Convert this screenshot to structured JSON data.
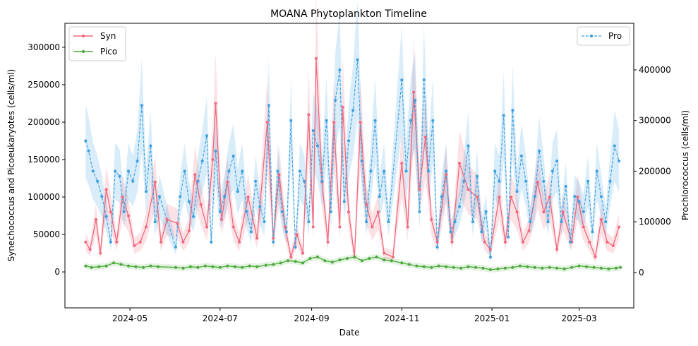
{
  "chart_data": {
    "type": "line",
    "title": "MOANA Phytoplankton Timeline",
    "xlabel": "Date",
    "ylabel_left": "Synechococcus and Picoeukaryotes (cells/ml)",
    "ylabel_right": "Prochlorococcus (cells/ml)",
    "xlim": [
      "2024-03-18",
      "2025-04-07"
    ],
    "ylim_left": [
      -48000,
      332000
    ],
    "ylim_right": [
      -70000,
      492000
    ],
    "x_ticks": [
      "2024-05",
      "2024-07",
      "2024-09",
      "2024-11",
      "2025-01",
      "2025-03"
    ],
    "y_ticks_left": [
      "0",
      "50000",
      "100000",
      "150000",
      "200000",
      "250000",
      "300000"
    ],
    "y_ticks_right": [
      "0",
      "100000",
      "200000",
      "300000",
      "400000"
    ],
    "legend_left": [
      "Syn",
      "Pico"
    ],
    "legend_right": [
      "Pro"
    ],
    "legend_left_loc": "upper left",
    "legend_right_loc": "upper right",
    "colors": {
      "Syn": "#f0697e",
      "Pico": "#4aaa3a",
      "Pro": "#3ca0e0"
    },
    "series": [
      {
        "name": "Syn",
        "axis": "left",
        "style": "solid",
        "x": [
          "2024-04-01",
          "2024-04-04",
          "2024-04-08",
          "2024-04-11",
          "2024-04-15",
          "2024-04-18",
          "2024-04-22",
          "2024-04-26",
          "2024-04-30",
          "2024-05-04",
          "2024-05-08",
          "2024-05-12",
          "2024-05-18",
          "2024-05-22",
          "2024-05-26",
          "2024-06-02",
          "2024-06-06",
          "2024-06-10",
          "2024-06-14",
          "2024-06-18",
          "2024-06-22",
          "2024-06-26",
          "2024-06-28",
          "2024-07-02",
          "2024-07-06",
          "2024-07-10",
          "2024-07-14",
          "2024-07-20",
          "2024-07-26",
          "2024-08-02",
          "2024-08-06",
          "2024-08-10",
          "2024-08-14",
          "2024-08-18",
          "2024-08-22",
          "2024-08-26",
          "2024-08-30",
          "2024-09-02",
          "2024-09-04",
          "2024-09-08",
          "2024-09-12",
          "2024-09-16",
          "2024-09-20",
          "2024-09-22",
          "2024-09-26",
          "2024-09-30",
          "2024-10-04",
          "2024-10-08",
          "2024-10-12",
          "2024-10-16",
          "2024-10-20",
          "2024-10-26",
          "2024-11-01",
          "2024-11-05",
          "2024-11-09",
          "2024-11-13",
          "2024-11-17",
          "2024-11-21",
          "2024-11-25",
          "2024-12-01",
          "2024-12-05",
          "2024-12-10",
          "2024-12-16",
          "2024-12-22",
          "2024-12-27",
          "2024-12-31",
          "2025-01-06",
          "2025-01-10",
          "2025-01-14",
          "2025-01-18",
          "2025-01-22",
          "2025-01-26",
          "2025-02-01",
          "2025-02-05",
          "2025-02-09",
          "2025-02-14",
          "2025-02-18",
          "2025-02-24",
          "2025-02-28",
          "2025-03-04",
          "2025-03-08",
          "2025-03-12",
          "2025-03-16",
          "2025-03-20",
          "2025-03-24",
          "2025-03-28"
        ],
        "values": [
          40000,
          30000,
          70000,
          25000,
          110000,
          80000,
          40000,
          100000,
          75000,
          35000,
          40000,
          60000,
          120000,
          40000,
          70000,
          65000,
          40000,
          55000,
          130000,
          90000,
          60000,
          150000,
          225000,
          70000,
          120000,
          60000,
          40000,
          100000,
          45000,
          200000,
          45000,
          130000,
          60000,
          20000,
          50000,
          25000,
          210000,
          60000,
          285000,
          120000,
          40000,
          200000,
          60000,
          220000,
          80000,
          20000,
          200000,
          90000,
          60000,
          80000,
          25000,
          20000,
          145000,
          60000,
          240000,
          110000,
          180000,
          70000,
          40000,
          130000,
          40000,
          145000,
          110000,
          100000,
          40000,
          30000,
          100000,
          40000,
          100000,
          80000,
          40000,
          55000,
          120000,
          80000,
          100000,
          30000,
          80000,
          40000,
          100000,
          60000,
          40000,
          20000,
          70000,
          40000,
          35000,
          60000
        ]
      },
      {
        "name": "Pico",
        "axis": "left",
        "style": "solid",
        "x": [
          "2024-04-01",
          "2024-04-05",
          "2024-04-10",
          "2024-04-15",
          "2024-04-20",
          "2024-04-25",
          "2024-04-30",
          "2024-05-05",
          "2024-05-10",
          "2024-05-15",
          "2024-05-20",
          "2024-06-01",
          "2024-06-06",
          "2024-06-11",
          "2024-06-16",
          "2024-06-21",
          "2024-06-26",
          "2024-07-01",
          "2024-07-06",
          "2024-07-11",
          "2024-07-16",
          "2024-07-21",
          "2024-07-26",
          "2024-08-01",
          "2024-08-06",
          "2024-08-11",
          "2024-08-16",
          "2024-08-21",
          "2024-08-26",
          "2024-08-31",
          "2024-09-05",
          "2024-09-10",
          "2024-09-15",
          "2024-09-20",
          "2024-09-25",
          "2024-09-30",
          "2024-10-05",
          "2024-10-10",
          "2024-10-15",
          "2024-10-20",
          "2024-10-25",
          "2024-11-01",
          "2024-11-06",
          "2024-11-11",
          "2024-11-16",
          "2024-11-21",
          "2024-11-26",
          "2024-12-01",
          "2024-12-06",
          "2024-12-11",
          "2024-12-16",
          "2024-12-21",
          "2024-12-26",
          "2024-12-31",
          "2025-01-05",
          "2025-01-10",
          "2025-01-15",
          "2025-01-20",
          "2025-01-25",
          "2025-01-30",
          "2025-02-04",
          "2025-02-09",
          "2025-02-14",
          "2025-02-19",
          "2025-02-24",
          "2025-03-01",
          "2025-03-06",
          "2025-03-11",
          "2025-03-16",
          "2025-03-21",
          "2025-03-26",
          "2025-03-29"
        ],
        "values": [
          8000,
          6000,
          7000,
          8000,
          12000,
          10000,
          8000,
          7000,
          6000,
          8000,
          7000,
          6000,
          5000,
          7000,
          6000,
          8000,
          7000,
          6000,
          8000,
          7000,
          6000,
          8000,
          7000,
          9000,
          10000,
          12000,
          15000,
          14000,
          12000,
          18000,
          20000,
          15000,
          13000,
          16000,
          18000,
          20000,
          15000,
          18000,
          20000,
          16000,
          15000,
          12000,
          10000,
          8000,
          7000,
          6000,
          8000,
          7000,
          6000,
          5000,
          7000,
          6000,
          5000,
          3000,
          4000,
          5000,
          6000,
          8000,
          7000,
          6000,
          5000,
          6000,
          5000,
          4000,
          6000,
          8000,
          7000,
          6000,
          5000,
          4000,
          5000,
          6000
        ]
      },
      {
        "name": "Pro",
        "axis": "right",
        "style": "dashed",
        "x": [
          "2024-04-01",
          "2024-04-03",
          "2024-04-06",
          "2024-04-09",
          "2024-04-12",
          "2024-04-15",
          "2024-04-18",
          "2024-04-21",
          "2024-04-24",
          "2024-04-27",
          "2024-04-30",
          "2024-05-03",
          "2024-05-06",
          "2024-05-09",
          "2024-05-12",
          "2024-05-15",
          "2024-05-18",
          "2024-05-21",
          "2024-06-01",
          "2024-06-04",
          "2024-06-07",
          "2024-06-10",
          "2024-06-13",
          "2024-06-16",
          "2024-06-19",
          "2024-06-22",
          "2024-06-25",
          "2024-06-28",
          "2024-07-01",
          "2024-07-04",
          "2024-07-07",
          "2024-07-10",
          "2024-07-13",
          "2024-07-16",
          "2024-07-19",
          "2024-07-22",
          "2024-07-25",
          "2024-07-28",
          "2024-07-31",
          "2024-08-03",
          "2024-08-06",
          "2024-08-09",
          "2024-08-12",
          "2024-08-15",
          "2024-08-18",
          "2024-08-21",
          "2024-08-24",
          "2024-08-27",
          "2024-08-30",
          "2024-09-02",
          "2024-09-05",
          "2024-09-08",
          "2024-09-11",
          "2024-09-14",
          "2024-09-17",
          "2024-09-20",
          "2024-09-23",
          "2024-09-26",
          "2024-09-29",
          "2024-10-02",
          "2024-10-05",
          "2024-10-08",
          "2024-10-11",
          "2024-10-14",
          "2024-10-17",
          "2024-10-20",
          "2024-10-23",
          "2024-11-01",
          "2024-11-04",
          "2024-11-07",
          "2024-11-10",
          "2024-11-13",
          "2024-11-16",
          "2024-11-19",
          "2024-11-22",
          "2024-11-25",
          "2024-11-28",
          "2024-12-01",
          "2024-12-04",
          "2024-12-07",
          "2024-12-10",
          "2024-12-13",
          "2024-12-16",
          "2024-12-19",
          "2024-12-22",
          "2024-12-25",
          "2024-12-28",
          "2024-12-31",
          "2025-01-03",
          "2025-01-06",
          "2025-01-09",
          "2025-01-12",
          "2025-01-15",
          "2025-01-18",
          "2025-01-21",
          "2025-01-24",
          "2025-01-27",
          "2025-01-30",
          "2025-02-02",
          "2025-02-05",
          "2025-02-08",
          "2025-02-11",
          "2025-02-14",
          "2025-02-17",
          "2025-02-20",
          "2025-02-23",
          "2025-02-26",
          "2025-03-01",
          "2025-03-04",
          "2025-03-07",
          "2025-03-10",
          "2025-03-13",
          "2025-03-16",
          "2025-03-19",
          "2025-03-22",
          "2025-03-25",
          "2025-03-28"
        ],
        "values": [
          260000,
          240000,
          200000,
          180000,
          150000,
          110000,
          60000,
          200000,
          190000,
          120000,
          200000,
          180000,
          220000,
          330000,
          160000,
          250000,
          100000,
          150000,
          50000,
          150000,
          200000,
          140000,
          110000,
          180000,
          220000,
          270000,
          60000,
          240000,
          120000,
          150000,
          200000,
          230000,
          160000,
          200000,
          120000,
          80000,
          180000,
          130000,
          100000,
          330000,
          60000,
          200000,
          120000,
          80000,
          300000,
          50000,
          200000,
          180000,
          100000,
          280000,
          250000,
          180000,
          300000,
          120000,
          340000,
          400000,
          140000,
          260000,
          320000,
          420000,
          220000,
          100000,
          200000,
          300000,
          150000,
          200000,
          100000,
          380000,
          200000,
          300000,
          340000,
          120000,
          380000,
          200000,
          300000,
          50000,
          150000,
          200000,
          80000,
          100000,
          130000,
          180000,
          250000,
          100000,
          190000,
          80000,
          120000,
          30000,
          200000,
          180000,
          310000,
          70000,
          320000,
          160000,
          230000,
          180000,
          100000,
          150000,
          240000,
          180000,
          100000,
          200000,
          220000,
          100000,
          170000,
          60000,
          150000,
          140000,
          120000,
          180000,
          80000,
          200000,
          150000,
          100000,
          180000,
          250000,
          220000
        ]
      }
    ]
  }
}
